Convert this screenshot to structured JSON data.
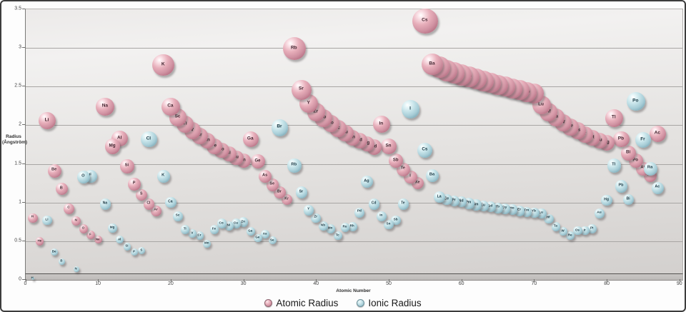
{
  "axes": {
    "y_title_line1": "Radius",
    "y_title_line2": "(Ångström)",
    "x_title": "Atomic Number",
    "y_ticks": [
      "3.5",
      "3",
      "2.5",
      "2",
      "1.5",
      "1",
      "0.5",
      "0"
    ],
    "x_ticks": [
      "0",
      "10",
      "20",
      "30",
      "40",
      "50",
      "60",
      "70",
      "80",
      "90"
    ]
  },
  "legend": {
    "items": [
      {
        "label": "Atomic Radius",
        "marker": "pink-sphere-icon"
      },
      {
        "label": "Ionic Radius",
        "marker": "blue-sphere-icon"
      }
    ]
  },
  "colors": {
    "atomic_base": "#d395a4",
    "atomic_dark": "#9c5568",
    "ionic_base": "#a9ced8",
    "ionic_dark": "#5f8fa0",
    "wall_top": "#f2f1f0",
    "wall_bottom": "#d3d0ce",
    "gridline": "#a8a6a4"
  },
  "chart_data": {
    "type": "scatter",
    "subtype": "bubble-size-proportional-to-value",
    "title": "",
    "xlabel": "Atomic Number",
    "ylabel": "Radius (Ångström)",
    "xlim": [
      0,
      90
    ],
    "ylim": [
      0,
      3.5
    ],
    "grid": "horizontal-only",
    "legend_position": "bottom-center",
    "point_format": [
      "element_symbol",
      "atomic_number_x",
      "radius_angstrom"
    ],
    "series": [
      {
        "name": "Atomic Radius",
        "color": "#d395a4",
        "points": [
          [
            "H",
            1,
            0.79
          ],
          [
            "He",
            2,
            0.49
          ],
          [
            "Li",
            3,
            2.05
          ],
          [
            "Be",
            4,
            1.4
          ],
          [
            "B",
            5,
            1.17
          ],
          [
            "C",
            6,
            0.91
          ],
          [
            "N",
            7,
            0.75
          ],
          [
            "O",
            8,
            0.65
          ],
          [
            "F",
            9,
            0.57
          ],
          [
            "Ne",
            10,
            0.51
          ],
          [
            "Na",
            11,
            2.23
          ],
          [
            "Mg",
            12,
            1.72
          ],
          [
            "Al",
            13,
            1.82
          ],
          [
            "Si",
            14,
            1.46
          ],
          [
            "P",
            15,
            1.23
          ],
          [
            "S",
            16,
            1.09
          ],
          [
            "Cl",
            17,
            0.97
          ],
          [
            "Ar",
            18,
            0.88
          ],
          [
            "K",
            19,
            2.77
          ],
          [
            "Ca",
            20,
            2.23
          ],
          [
            "Sc",
            21,
            2.09
          ],
          [
            "Ti",
            22,
            2.0
          ],
          [
            "V",
            23,
            1.92
          ],
          [
            "Cr",
            24,
            1.85
          ],
          [
            "Mn",
            25,
            1.79
          ],
          [
            "Fe",
            26,
            1.72
          ],
          [
            "Co",
            27,
            1.67
          ],
          [
            "Ni",
            28,
            1.62
          ],
          [
            "Cu",
            29,
            1.57
          ],
          [
            "Zn",
            30,
            1.53
          ],
          [
            "Ga",
            31,
            1.81
          ],
          [
            "Ge",
            32,
            1.52
          ],
          [
            "As",
            33,
            1.33
          ],
          [
            "Se",
            34,
            1.22
          ],
          [
            "Br",
            35,
            1.12
          ],
          [
            "Kr",
            36,
            1.03
          ],
          [
            "Rb",
            37,
            2.98
          ],
          [
            "Sr",
            38,
            2.45
          ],
          [
            "Y",
            39,
            2.27
          ],
          [
            "Zr",
            40,
            2.16
          ],
          [
            "Nb",
            41,
            2.08
          ],
          [
            "Mo",
            42,
            2.01
          ],
          [
            "Tc",
            43,
            1.95
          ],
          [
            "Ru",
            44,
            1.89
          ],
          [
            "Rh",
            45,
            1.83
          ],
          [
            "Pd",
            46,
            1.79
          ],
          [
            "Ag",
            47,
            1.75
          ],
          [
            "Cd",
            48,
            1.71
          ],
          [
            "In",
            49,
            2.0
          ],
          [
            "Sn",
            50,
            1.72
          ],
          [
            "Sb",
            51,
            1.53
          ],
          [
            "Te",
            52,
            1.42
          ],
          [
            "I",
            53,
            1.32
          ],
          [
            "Xe",
            54,
            1.24
          ],
          [
            "Cs",
            55,
            3.34
          ],
          [
            "Ba",
            56,
            2.78
          ],
          [
            "La",
            57,
            2.74
          ],
          [
            "Ce",
            58,
            2.7
          ],
          [
            "Pr",
            59,
            2.67
          ],
          [
            "Nd",
            60,
            2.64
          ],
          [
            "Pm",
            61,
            2.62
          ],
          [
            "Sm",
            62,
            2.59
          ],
          [
            "Eu",
            63,
            2.56
          ],
          [
            "Gd",
            64,
            2.54
          ],
          [
            "Tb",
            65,
            2.51
          ],
          [
            "Dy",
            66,
            2.49
          ],
          [
            "Ho",
            67,
            2.47
          ],
          [
            "Er",
            68,
            2.45
          ],
          [
            "Tm",
            69,
            2.42
          ],
          [
            "Yb",
            70,
            2.4
          ],
          [
            "Lu",
            71,
            2.25
          ],
          [
            "Hf",
            72,
            2.16
          ],
          [
            "Ta",
            73,
            2.09
          ],
          [
            "W",
            74,
            2.02
          ],
          [
            "Re",
            75,
            1.97
          ],
          [
            "Os",
            76,
            1.92
          ],
          [
            "Ir",
            77,
            1.87
          ],
          [
            "Pt",
            78,
            1.83
          ],
          [
            "Au",
            79,
            1.79
          ],
          [
            "Hg",
            80,
            1.76
          ],
          [
            "Tl",
            81,
            2.08
          ],
          [
            "Pb",
            82,
            1.81
          ],
          [
            "Bi",
            83,
            1.63
          ],
          [
            "Po",
            84,
            1.53
          ],
          [
            "At",
            85,
            1.43
          ],
          [
            "Rn",
            86,
            1.34
          ],
          [
            "Ac",
            87,
            1.88
          ]
        ]
      },
      {
        "name": "Ionic Radius",
        "color": "#a9ced8",
        "points": [
          [
            "H",
            1,
            0.01
          ],
          [
            "Li",
            3,
            0.76
          ],
          [
            "Be",
            4,
            0.35
          ],
          [
            "B",
            5,
            0.23
          ],
          [
            "N",
            7,
            0.13
          ],
          [
            "O",
            8,
            1.32
          ],
          [
            "F",
            9,
            1.33
          ],
          [
            "Na",
            11,
            0.97
          ],
          [
            "Mg",
            12,
            0.66
          ],
          [
            "Al",
            13,
            0.51
          ],
          [
            "Si",
            14,
            0.42
          ],
          [
            "P",
            15,
            0.35
          ],
          [
            "S",
            16,
            0.37
          ],
          [
            "Cl",
            17,
            1.81
          ],
          [
            "K",
            19,
            1.33
          ],
          [
            "Ca",
            20,
            0.99
          ],
          [
            "Sc",
            21,
            0.81
          ],
          [
            "Ti",
            22,
            0.64
          ],
          [
            "V",
            23,
            0.59
          ],
          [
            "Cr",
            24,
            0.56
          ],
          [
            "Mn",
            25,
            0.46
          ],
          [
            "Fe",
            26,
            0.64
          ],
          [
            "Co",
            27,
            0.72
          ],
          [
            "Ni",
            28,
            0.69
          ],
          [
            "Cu",
            29,
            0.72
          ],
          [
            "Zn",
            30,
            0.74
          ],
          [
            "Ga",
            31,
            0.62
          ],
          [
            "Ge",
            32,
            0.53
          ],
          [
            "As",
            33,
            0.58
          ],
          [
            "Se",
            34,
            0.5
          ],
          [
            "Br",
            35,
            1.96
          ],
          [
            "Rb",
            37,
            1.47
          ],
          [
            "Sr",
            38,
            1.12
          ],
          [
            "Y",
            39,
            0.89
          ],
          [
            "Zr",
            40,
            0.79
          ],
          [
            "Nb",
            41,
            0.69
          ],
          [
            "Mo",
            42,
            0.65
          ],
          [
            "Tc",
            43,
            0.56
          ],
          [
            "Ru",
            44,
            0.67
          ],
          [
            "Rh",
            45,
            0.68
          ],
          [
            "Pd",
            46,
            0.86
          ],
          [
            "Ag",
            47,
            1.26
          ],
          [
            "Cd",
            48,
            0.97
          ],
          [
            "In",
            49,
            0.81
          ],
          [
            "Sn",
            50,
            0.71
          ],
          [
            "Sb",
            51,
            0.76
          ],
          [
            "Te",
            52,
            0.97
          ],
          [
            "I",
            53,
            2.2
          ],
          [
            "Cs",
            55,
            1.67
          ],
          [
            "Ba",
            56,
            1.34
          ],
          [
            "La",
            57,
            1.06
          ],
          [
            "Ce",
            58,
            1.03
          ],
          [
            "Pr",
            59,
            1.01
          ],
          [
            "Nd",
            60,
            1.0
          ],
          [
            "Pm",
            61,
            0.98
          ],
          [
            "Sm",
            62,
            0.96
          ],
          [
            "Eu",
            63,
            0.95
          ],
          [
            "Gd",
            64,
            0.94
          ],
          [
            "Tb",
            65,
            0.92
          ],
          [
            "Dy",
            66,
            0.91
          ],
          [
            "Ho",
            67,
            0.9
          ],
          [
            "Er",
            68,
            0.88
          ],
          [
            "Tm",
            69,
            0.87
          ],
          [
            "Yb",
            70,
            0.86
          ],
          [
            "Lu",
            71,
            0.85
          ],
          [
            "Hf",
            72,
            0.78
          ],
          [
            "Ta",
            73,
            0.68
          ],
          [
            "W",
            74,
            0.62
          ],
          [
            "Re",
            75,
            0.56
          ],
          [
            "Os",
            76,
            0.63
          ],
          [
            "Ir",
            77,
            0.63
          ],
          [
            "Pt",
            78,
            0.65
          ],
          [
            "Au",
            79,
            0.85
          ],
          [
            "Hg",
            80,
            1.02
          ],
          [
            "Tl",
            81,
            1.47
          ],
          [
            "Pb",
            82,
            1.2
          ],
          [
            "Bi",
            83,
            1.03
          ],
          [
            "Po",
            84,
            2.3
          ],
          [
            "Fr",
            85,
            1.8
          ],
          [
            "Ra",
            86,
            1.43
          ],
          [
            "Ac",
            87,
            1.18
          ]
        ]
      }
    ]
  }
}
